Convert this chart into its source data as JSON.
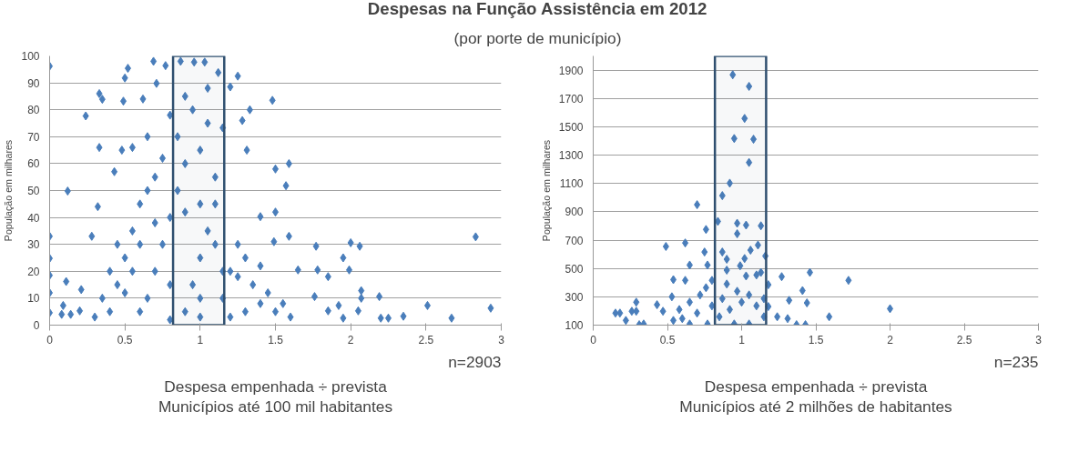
{
  "chart_data": [
    {
      "type": "scatter",
      "title": "Despesas na Função Assistência em 2012",
      "subtitle": "(por porte de município)",
      "xlabel": "Despesa empenhada ÷ prevista\nMunicípios até 100 mil habitantes",
      "ylabel": "População em milhares",
      "annotations": [
        "n=2903"
      ],
      "xlim": [
        0,
        3
      ],
      "xticks": [
        0,
        0.5,
        1,
        1.5,
        2,
        2.5,
        3
      ],
      "ylim": [
        0,
        100
      ],
      "yticks": [
        0,
        10,
        20,
        30,
        40,
        50,
        60,
        70,
        80,
        90,
        100
      ],
      "grid": "y",
      "marker": "diamond",
      "bands": [
        {
          "axis": "x",
          "from": 0.82,
          "to": 1.16,
          "label": null,
          "color": "#2f4f6f"
        }
      ],
      "series": [
        {
          "color": "#4a7ebb",
          "x": [
            0,
            0,
            0,
            0,
            0,
            0,
            0.12,
            0.24,
            0.33,
            0.33,
            0.35,
            0.32,
            0.28,
            0.11,
            0.21,
            0.43,
            0.49,
            0.5,
            0.52,
            0.48,
            0.55,
            0.62,
            0.69,
            0.71,
            0.77,
            0.87,
            0.96,
            1.03,
            1.12,
            1.2,
            1.25,
            1.33,
            1.28,
            1.31,
            1.15,
            1.48,
            1.59,
            1.5,
            1.57,
            1.5,
            1.4,
            1.59,
            1.49,
            1.77,
            2.0,
            2.06,
            1.95,
            1.99,
            1.78,
            1.65,
            1.85,
            2.07,
            2.19,
            2.07,
            1.92,
            2.05,
            2.2,
            2.25,
            2.35,
            2.51,
            2.67,
            2.83,
            2.93,
            1.76,
            1.85,
            1.95,
            0.14,
            0.08,
            0.09,
            0.2,
            0.4,
            0.45,
            0.5,
            0.55,
            0.6,
            0.65,
            0.7,
            0.75,
            0.8,
            0.85,
            0.9,
            0.95,
            1.0,
            1.05,
            1.1,
            1.15,
            1.2,
            1.25,
            1.3,
            1.35,
            1.4,
            1.5,
            1.6,
            0.35,
            0.3,
            0.6,
            0.8,
            1.0,
            1.2,
            0.7,
            0.9,
            1.0,
            0.85,
            1.05,
            0.75,
            0.95,
            0.65,
            1.1,
            0.55,
            0.45,
            1.25,
            1.3,
            0.7,
            0.9,
            1.0,
            1.1,
            0.6,
            0.5,
            0.8,
            1.0,
            1.15,
            1.4,
            1.45,
            1.55,
            0.4,
            0.65,
            0.9,
            1.05,
            0.8
          ],
          "values": [
            96.2,
            33,
            24.8,
            18.5,
            12,
            4.6,
            49.8,
            77.7,
            66,
            86,
            83.9,
            44,
            33,
            16.2,
            13.2,
            57,
            83.2,
            91.8,
            95.4,
            65,
            66,
            84,
            98,
            89.8,
            96.4,
            98,
            97.7,
            97.7,
            93.8,
            88.5,
            92.5,
            80,
            76,
            65,
            73.3,
            83.5,
            60,
            58,
            51.8,
            42,
            40.3,
            33,
            31,
            29.3,
            30.6,
            29.3,
            25,
            20.5,
            20.5,
            20.5,
            18,
            12.8,
            10.6,
            10,
            7.3,
            5.3,
            2.6,
            2.6,
            3.3,
            7.3,
            2.6,
            32.8,
            6.3,
            10.6,
            5.3,
            2.6,
            4,
            4,
            7.3,
            5.3,
            5,
            15,
            25,
            35,
            45,
            10,
            20,
            30,
            40,
            50,
            5,
            15,
            25,
            35,
            45,
            10,
            20,
            30,
            5,
            15,
            8,
            5,
            3,
            10,
            3,
            5,
            2,
            3,
            3,
            55,
            60,
            65,
            70,
            75,
            62,
            80,
            50,
            55,
            20,
            30,
            18,
            25,
            38,
            42,
            45,
            30,
            30,
            12,
            15,
            10,
            20,
            22,
            12,
            8,
            20,
            70,
            85,
            88,
            78
          ]
        }
      ]
    },
    {
      "type": "scatter",
      "xlabel": "Despesa empenhada ÷ prevista\nMunicípios até 2 milhões de habitantes",
      "ylabel": "População em milhares",
      "annotations": [
        "n=235"
      ],
      "xlim": [
        0,
        3
      ],
      "xticks": [
        0,
        0.5,
        1,
        1.5,
        2,
        2.5,
        3
      ],
      "ylim": [
        100,
        2000
      ],
      "yticks": [
        100,
        300,
        500,
        700,
        900,
        1100,
        1300,
        1500,
        1700,
        1900
      ],
      "grid": "y",
      "marker": "diamond",
      "bands": [
        {
          "axis": "x",
          "from": 0.82,
          "to": 1.165,
          "label": null,
          "color": "#2f4f6f"
        }
      ],
      "series": [
        {
          "color": "#4a7ebb",
          "x": [
            0.94,
            1.05,
            1.02,
            0.95,
            1.08,
            1.05,
            0.92,
            0.87,
            0.7,
            0.84,
            0.97,
            1.03,
            1.13,
            0.97,
            0.76,
            0.49,
            0.62,
            0.75,
            0.87,
            1.11,
            1.06,
            1.02,
            1.16,
            0.9,
            0.65,
            0.77,
            0.99,
            0.9,
            1.13,
            1.27,
            1.46,
            1.72,
            1.41,
            1.32,
            1.44,
            2.0,
            1.59,
            0.54,
            0.62,
            0.53,
            0.15,
            0.18,
            0.22,
            0.29,
            0.29,
            0.26,
            0.31,
            0.34,
            0.43,
            0.47,
            0.54,
            1.37,
            1.43,
            1.24,
            1.31,
            1.18,
            1.18,
            1.1,
            1.03,
            0.8,
            0.9,
            0.72,
            0.65,
            0.58,
            0.7,
            0.8,
            0.85,
            0.92,
            1.0,
            1.05,
            1.1,
            1.15,
            0.95,
            0.77,
            0.65,
            1.05,
            0.6,
            0.87,
            0.97,
            1.15,
            0.76
          ],
          "values": [
            1867,
            1785,
            1559,
            1417,
            1412,
            1248,
            1102,
            1014,
            950,
            832,
            819,
            806,
            801,
            745,
            775,
            655,
            680,
            616,
            616,
            665,
            629,
            570,
            588,
            565,
            524,
            524,
            519,
            488,
            472,
            442,
            472,
            416,
            344,
            275,
            257,
            216,
            159,
            421,
            416,
            300,
            185,
            185,
            133,
            262,
            198,
            198,
            103,
            108,
            244,
            198,
            133,
            103,
            103,
            159,
            146,
            231,
            385,
            454,
            447,
            416,
            390,
            313,
            262,
            210,
            185,
            236,
            159,
            210,
            262,
            313,
            236,
            159,
            108,
            108,
            108,
            108,
            146,
            287,
            339,
            287,
            364
          ]
        }
      ]
    }
  ]
}
